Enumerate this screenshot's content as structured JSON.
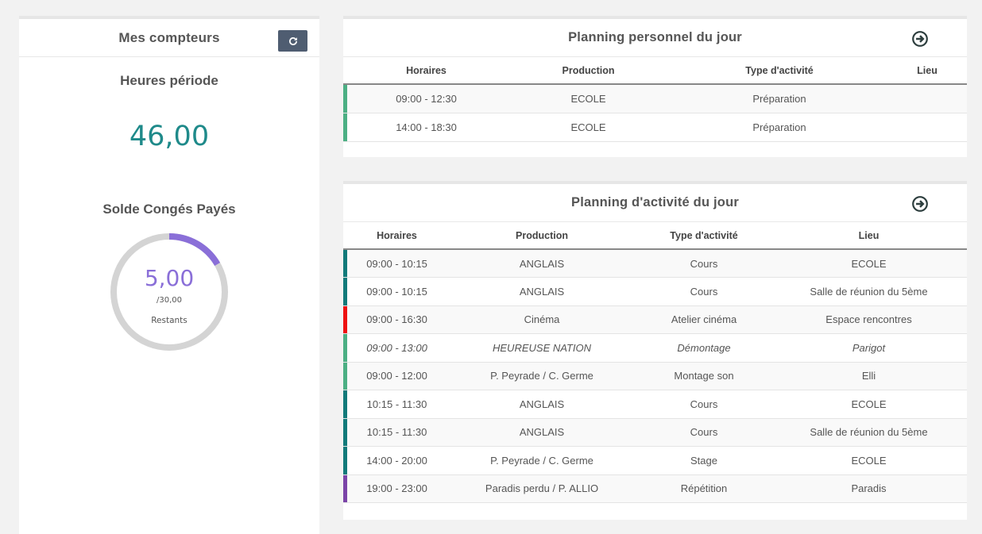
{
  "counters": {
    "title": "Mes compteurs",
    "hours_label": "Heures période",
    "hours_value": "46,00",
    "cp_label": "Solde Congés Payés",
    "cp_value": "5,00",
    "cp_total": "/30,00",
    "cp_caption": "Restants",
    "cp_fraction": 0.1667,
    "colors": {
      "hours": "#1f8a8a",
      "donut_fill": "#8a6fd8",
      "donut_track": "#d4d4d4"
    }
  },
  "perso": {
    "title": "Planning personnel du jour",
    "headers": [
      "Horaires",
      "Production",
      "Type d'activité",
      "Lieu"
    ],
    "rows": [
      {
        "color": "#4caf84",
        "time": "09:00 - 12:30",
        "production": "ECOLE",
        "type": "Préparation",
        "place": ""
      },
      {
        "color": "#4caf84",
        "time": "14:00 - 18:30",
        "production": "ECOLE",
        "type": "Préparation",
        "place": ""
      }
    ]
  },
  "activ": {
    "title": "Planning d'activité du jour",
    "headers": [
      "Horaires",
      "Production",
      "Type d'activité",
      "Lieu"
    ],
    "rows": [
      {
        "color": "#117a7a",
        "time": "09:00 - 10:15",
        "production": "ANGLAIS",
        "type": "Cours",
        "place": "ECOLE",
        "italic": false
      },
      {
        "color": "#117a7a",
        "time": "09:00 - 10:15",
        "production": "ANGLAIS",
        "type": "Cours",
        "place": "Salle de réunion du 5ème",
        "italic": false
      },
      {
        "color": "#ee1111",
        "time": "09:00 - 16:30",
        "production": "Cinéma",
        "type": "Atelier cinéma",
        "place": "Espace rencontres",
        "italic": false
      },
      {
        "color": "#4caf84",
        "time": "09:00 - 13:00",
        "production": "HEUREUSE NATION",
        "type": "Démontage",
        "place": "Parigot",
        "italic": true
      },
      {
        "color": "#4caf84",
        "time": "09:00 - 12:00",
        "production": "P. Peyrade / C. Germe",
        "type": "Montage son",
        "place": "Elli",
        "italic": false
      },
      {
        "color": "#117a7a",
        "time": "10:15 - 11:30",
        "production": "ANGLAIS",
        "type": "Cours",
        "place": "ECOLE",
        "italic": false
      },
      {
        "color": "#117a7a",
        "time": "10:15 - 11:30",
        "production": "ANGLAIS",
        "type": "Cours",
        "place": "Salle de réunion du 5ème",
        "italic": false
      },
      {
        "color": "#117a7a",
        "time": "14:00 - 20:00",
        "production": "P. Peyrade / C. Germe",
        "type": "Stage",
        "place": "ECOLE",
        "italic": false
      },
      {
        "color": "#7b44a8",
        "time": "19:00 - 23:00",
        "production": "Paradis perdu / P. ALLIO",
        "type": "Répétition",
        "place": "Paradis",
        "italic": false
      }
    ]
  },
  "icons": {
    "refresh": "refresh-icon",
    "go": "arrow-circle-right-icon"
  }
}
